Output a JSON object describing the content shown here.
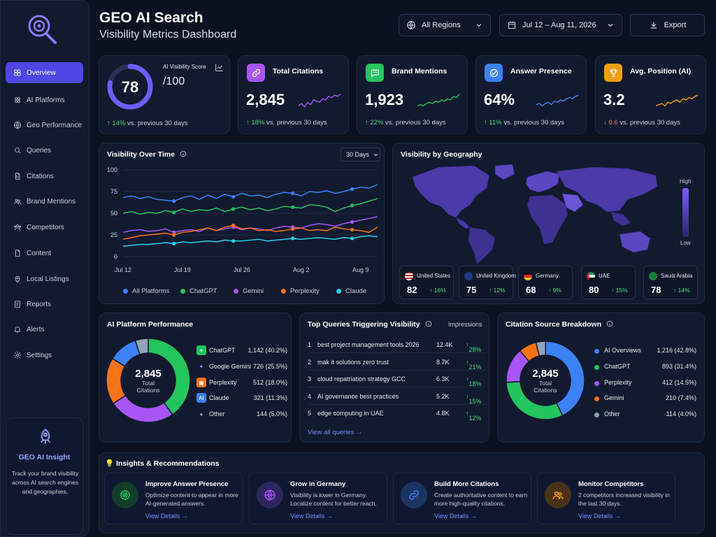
{
  "header": {
    "title": "GEO AI Search",
    "subtitle": "Visibility Metrics Dashboard",
    "region": "All Regions",
    "date_range": "Jul 12 – Aug 11, 2026",
    "export_label": "Export"
  },
  "sidebar": {
    "items": [
      {
        "label": "Overview",
        "icon": "grid-icon"
      },
      {
        "label": "AI Platforms",
        "icon": "platforms-icon"
      },
      {
        "label": "Geo Performance",
        "icon": "globe-icon"
      },
      {
        "label": "Queries",
        "icon": "search-icon"
      },
      {
        "label": "Citations",
        "icon": "document-icon"
      },
      {
        "label": "Brand Mentions",
        "icon": "users-icon"
      },
      {
        "label": "Competitors",
        "icon": "competitors-icon"
      },
      {
        "label": "Content",
        "icon": "file-icon"
      },
      {
        "label": "Local Listings",
        "icon": "pin-icon"
      },
      {
        "label": "Reports",
        "icon": "report-icon"
      },
      {
        "label": "Alerts",
        "icon": "bell-icon"
      },
      {
        "label": "Settings",
        "icon": "gear-icon"
      }
    ],
    "insight": {
      "title": "GEO AI Insight",
      "text": "Track your brand visibility across AI search engines and geographies."
    }
  },
  "kpis": {
    "score": {
      "label": "AI Visibility Score",
      "value": "78",
      "max": "/100",
      "delta": "14%",
      "delta_suffix": "vs. previous 30 days",
      "fraction": 0.78
    },
    "cards": [
      {
        "title": "Total Citations",
        "value": "2,845",
        "delta": "18%",
        "direction": "up",
        "suffix": "vs. previous 30 days",
        "color": "#a855f7",
        "icon": "link-icon"
      },
      {
        "title": "Brand Mentions",
        "value": "1,923",
        "delta": "22%",
        "direction": "up",
        "suffix": "vs. previous 30 days",
        "color": "#22c55e",
        "icon": "chat-icon"
      },
      {
        "title": "Answer Presence",
        "value": "64%",
        "delta": "11%",
        "direction": "up",
        "suffix": "vs. previous 30 days",
        "color": "#3b82f6",
        "icon": "check-badge-icon"
      },
      {
        "title": "Avg. Position (AI)",
        "value": "3.2",
        "delta": "0.6",
        "direction": "down",
        "suffix": "vs. previous 30 days",
        "color": "#f59e0b",
        "icon": "trophy-icon"
      }
    ]
  },
  "visibility_over_time": {
    "title": "Visibility Over Time",
    "range_select": "30 Days"
  },
  "chart_data": {
    "type": "line",
    "x": [
      "Jul 12",
      "Jul 13",
      "Jul 14",
      "Jul 15",
      "Jul 16",
      "Jul 17",
      "Jul 18",
      "Jul 19",
      "Jul 20",
      "Jul 21",
      "Jul 22",
      "Jul 23",
      "Jul 24",
      "Jul 25",
      "Jul 26",
      "Jul 27",
      "Jul 28",
      "Jul 29",
      "Jul 30",
      "Jul 31",
      "Aug 1",
      "Aug 2",
      "Aug 3",
      "Aug 4",
      "Aug 5",
      "Aug 6",
      "Aug 7",
      "Aug 8",
      "Aug 9",
      "Aug 10",
      "Aug 11"
    ],
    "xticks": [
      "Jul 12",
      "Jul 19",
      "Jul 26",
      "Aug 2",
      "Aug 9"
    ],
    "yticks": [
      0,
      25,
      50,
      75,
      100
    ],
    "ylim": [
      0,
      100
    ],
    "series": [
      {
        "name": "All Platforms",
        "color": "#3b82f6",
        "values": [
          68,
          70,
          67,
          69,
          66,
          65,
          64,
          68,
          70,
          66,
          71,
          67,
          72,
          69,
          73,
          70,
          71,
          68,
          72,
          74,
          73,
          70,
          75,
          74,
          76,
          73,
          75,
          78,
          80,
          79,
          83
        ]
      },
      {
        "name": "ChatGPT",
        "color": "#22c55e",
        "values": [
          50,
          52,
          49,
          51,
          50,
          53,
          51,
          55,
          52,
          54,
          53,
          56,
          52,
          55,
          57,
          54,
          56,
          53,
          55,
          58,
          57,
          56,
          60,
          59,
          57,
          52,
          56,
          59,
          61,
          64,
          67
        ]
      },
      {
        "name": "Gemini",
        "color": "#a855f7",
        "values": [
          28,
          30,
          31,
          29,
          30,
          32,
          28,
          30,
          31,
          29,
          33,
          30,
          32,
          34,
          31,
          33,
          32,
          30,
          33,
          35,
          34,
          33,
          36,
          38,
          37,
          35,
          38,
          40,
          42,
          44,
          46
        ]
      },
      {
        "name": "Perplexity",
        "color": "#f97316",
        "values": [
          20,
          22,
          24,
          25,
          26,
          27,
          25,
          28,
          29,
          31,
          33,
          30,
          34,
          36,
          32,
          33,
          30,
          31,
          29,
          30,
          32,
          33,
          30,
          31,
          30,
          34,
          32,
          31,
          30,
          28,
          34
        ]
      },
      {
        "name": "Claude",
        "color": "#22d3ee",
        "values": [
          12,
          13,
          14,
          14,
          15,
          16,
          15,
          17,
          16,
          17,
          18,
          17,
          19,
          18,
          18,
          19,
          20,
          18,
          19,
          20,
          21,
          20,
          21,
          22,
          21,
          20,
          22,
          21,
          23,
          24,
          23
        ]
      }
    ]
  },
  "geo": {
    "title": "Visibility by Geography",
    "scale_high": "High",
    "scale_low": "Low",
    "countries": [
      {
        "name": "United States",
        "value": "82",
        "delta": "16%",
        "flag": "us"
      },
      {
        "name": "United Kingdom",
        "value": "75",
        "delta": "12%",
        "flag": "gb"
      },
      {
        "name": "Germany",
        "value": "68",
        "delta": "9%",
        "flag": "de"
      },
      {
        "name": "UAE",
        "value": "80",
        "delta": "15%",
        "flag": "ae"
      },
      {
        "name": "Saudi Arabia",
        "value": "78",
        "delta": "14%",
        "flag": "sa"
      }
    ]
  },
  "platform_perf": {
    "title": "AI Platform Performance",
    "center_value": "2,845",
    "center_label_1": "Total",
    "center_label_2": "Citations",
    "items": [
      {
        "name": "ChatGPT",
        "value": "1,142 (40.2%)",
        "fraction": 0.402,
        "color": "#22c55e",
        "icon": "chatgpt-icon"
      },
      {
        "name": "Google Gemini",
        "value": "726 (25.5%)",
        "fraction": 0.255,
        "color": "#a855f7",
        "icon": "gemini-icon"
      },
      {
        "name": "Perplexity",
        "value": "512 (18.0%)",
        "fraction": 0.18,
        "color": "#f97316",
        "icon": "perplexity-icon"
      },
      {
        "name": "Claude",
        "value": "321 (11.3%)",
        "fraction": 0.113,
        "color": "#3b82f6",
        "icon": "claude-icon"
      },
      {
        "name": "Other",
        "value": "144 (5.0%)",
        "fraction": 0.05,
        "color": "#94a3b8",
        "icon": "other-icon"
      }
    ]
  },
  "queries": {
    "title": "Top Queries Triggering Visibility",
    "col_impressions": "Impressions",
    "rows": [
      {
        "n": "1",
        "text": "best project management tools 2026",
        "impr": "12.4K",
        "delta": "28%"
      },
      {
        "n": "2",
        "text": "mak it solutions zero trust",
        "impr": "8.7K",
        "delta": "21%"
      },
      {
        "n": "3",
        "text": "cloud repatriation strategy GCC",
        "impr": "6.3K",
        "delta": "18%"
      },
      {
        "n": "4",
        "text": "AI governance best practices",
        "impr": "5.2K",
        "delta": "15%"
      },
      {
        "n": "5",
        "text": "edge computing in UAE",
        "impr": "4.8K",
        "delta": "12%"
      }
    ],
    "view_all": "View all queries"
  },
  "citations": {
    "title": "Citation Source Breakdown",
    "center_value": "2,845",
    "center_label_1": "Total",
    "center_label_2": "Citations",
    "items": [
      {
        "name": "AI Overviews",
        "value": "1,216 (42.8%)",
        "fraction": 0.428,
        "color": "#3b82f6"
      },
      {
        "name": "ChatGPT",
        "value": "893 (31.4%)",
        "fraction": 0.314,
        "color": "#22c55e"
      },
      {
        "name": "Perplexity",
        "value": "412 (14.5%)",
        "fraction": 0.145,
        "color": "#a855f7"
      },
      {
        "name": "Gemini",
        "value": "210 (7.4%)",
        "fraction": 0.074,
        "color": "#f97316"
      },
      {
        "name": "Other",
        "value": "114 (4.0%)",
        "fraction": 0.04,
        "color": "#94a3b8"
      }
    ]
  },
  "insights": {
    "title": "Insights & Recommendations",
    "items": [
      {
        "title": "Improve Answer Presence",
        "text": "Optimize content to appear in more AI-generated answers.",
        "link": "View Details",
        "color": "#22c55e",
        "icon": "target-icon"
      },
      {
        "title": "Grow in Germany",
        "text": "Visibility is lower in Germany. Localize content for better reach.",
        "link": "View Details",
        "color": "#a855f7",
        "icon": "globe-icon"
      },
      {
        "title": "Build More Citations",
        "text": "Create authoritative content to earn more high-quality citations.",
        "link": "View Details",
        "color": "#3b82f6",
        "icon": "link-icon"
      },
      {
        "title": "Monitor Competitors",
        "text": "2 competitors increased visibility in the last 30 days.",
        "link": "View Details",
        "color": "#f59e0b",
        "icon": "users-icon"
      }
    ]
  }
}
